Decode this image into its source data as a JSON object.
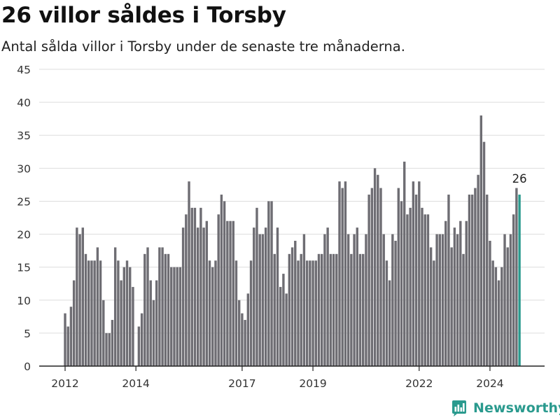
{
  "header": {
    "title": "26 villor såldes i Torsby",
    "subtitle": "Antal sålda villor i Torsby under de senaste tre månaderna."
  },
  "brand": {
    "name": "Newsworthy",
    "icon": "bar-chart-logo-icon"
  },
  "colors": {
    "bar": "#6e6d73",
    "highlight": "#2a9a8e",
    "grid": "#dddddd",
    "axis": "#222222",
    "tick_text": "#333333"
  },
  "chart_data": {
    "type": "bar",
    "title": "26 villor såldes i Torsby",
    "subtitle": "Antal sålda villor i Torsby under de senaste tre månaderna.",
    "xlabel": "",
    "ylabel": "",
    "ylim": [
      0,
      45
    ],
    "yticks": [
      0,
      5,
      10,
      15,
      20,
      25,
      30,
      35,
      40,
      45
    ],
    "grid": true,
    "legend": "none",
    "x_start": "2012-01",
    "x_interval": "month",
    "xtick_labels": [
      {
        "label": "2012",
        "at": "2012-01"
      },
      {
        "label": "2014",
        "at": "2014-01"
      },
      {
        "label": "2017",
        "at": "2017-01"
      },
      {
        "label": "2019",
        "at": "2019-01"
      },
      {
        "label": "2022",
        "at": "2022-01"
      },
      {
        "label": "2024",
        "at": "2024-01"
      }
    ],
    "values": [
      8,
      6,
      9,
      13,
      21,
      20,
      21,
      17,
      16,
      16,
      16,
      18,
      16,
      10,
      5,
      5,
      7,
      18,
      16,
      13,
      15,
      16,
      15,
      12,
      0,
      6,
      8,
      17,
      18,
      13,
      10,
      13,
      18,
      18,
      17,
      17,
      15,
      15,
      15,
      15,
      21,
      23,
      28,
      24,
      24,
      21,
      24,
      21,
      22,
      16,
      15,
      16,
      23,
      26,
      25,
      22,
      22,
      22,
      16,
      10,
      8,
      7,
      11,
      16,
      21,
      24,
      20,
      20,
      21,
      25,
      25,
      17,
      21,
      12,
      14,
      11,
      17,
      18,
      19,
      16,
      17,
      20,
      16,
      16,
      16,
      16,
      17,
      17,
      20,
      21,
      17,
      17,
      17,
      28,
      27,
      28,
      20,
      17,
      20,
      21,
      17,
      17,
      20,
      26,
      27,
      30,
      29,
      27,
      20,
      16,
      13,
      20,
      19,
      27,
      25,
      31,
      23,
      24,
      28,
      26,
      28,
      24,
      23,
      23,
      18,
      16,
      20,
      20,
      20,
      22,
      26,
      18,
      21,
      20,
      22,
      17,
      22,
      26,
      26,
      27,
      29,
      38,
      34,
      26,
      19,
      16,
      15,
      13,
      15,
      20,
      18,
      20,
      23,
      27,
      26
    ],
    "highlight": {
      "index": 154,
      "label": "26"
    }
  }
}
